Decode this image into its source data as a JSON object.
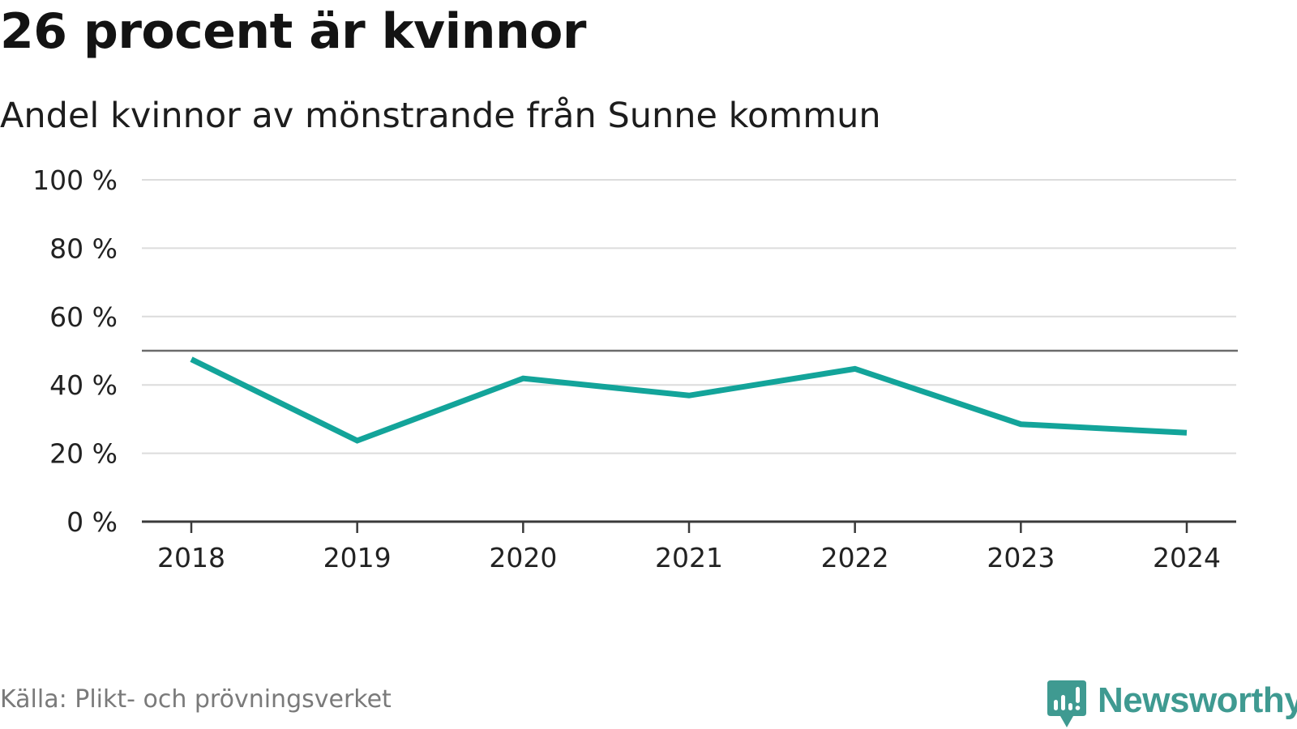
{
  "header": {
    "title": "26 procent är kvinnor",
    "subtitle": "Andel kvinnor av mönstrande från Sunne kommun"
  },
  "footer": {
    "source": "Källa: Plikt- och prövningsverket",
    "brand": "Newsworthy",
    "brand_icon": "newsworthy-logo-icon"
  },
  "colors": {
    "line": "#13a49a",
    "reference": "#6b6b6b",
    "grid": "#dcdcdc",
    "axis": "#3a3a3a",
    "brand": "#3f9a91"
  },
  "chart_data": {
    "type": "line",
    "title": "26 procent är kvinnor",
    "subtitle": "Andel kvinnor av mönstrande från Sunne kommun",
    "xlabel": "",
    "ylabel": "",
    "categories": [
      "2018",
      "2019",
      "2020",
      "2021",
      "2022",
      "2023",
      "2024"
    ],
    "series": [
      {
        "name": "Andel kvinnor",
        "values": [
          47.5,
          23.7,
          41.9,
          36.9,
          44.7,
          28.5,
          26.0
        ]
      }
    ],
    "reference_line": 50,
    "ylim": [
      0,
      100
    ],
    "yticks": [
      0,
      20,
      40,
      60,
      80,
      100
    ],
    "ytick_labels": [
      "0 %",
      "20 %",
      "40 %",
      "60 %",
      "80 %",
      "100 %"
    ],
    "grid": true
  }
}
